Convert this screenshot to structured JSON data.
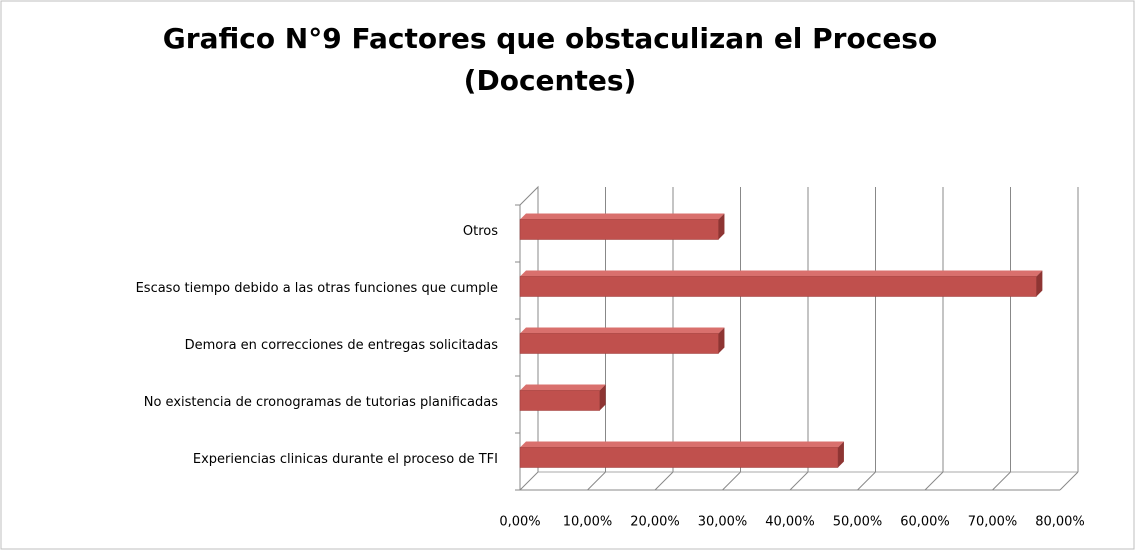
{
  "chart_data": {
    "type": "bar3d_horizontal",
    "title": [
      "Grafico N°9 Factores que obstaculizan el Proceso",
      "(Docentes)"
    ],
    "categories": [
      "Experiencias clinicas durante el proceso de TFI",
      "No existencia de cronogramas de tutorias planificadas",
      "Demora en correcciones de entregas solicitadas",
      "Escaso tiempo debido a las otras funciones que cumple",
      "Otros"
    ],
    "values": [
      47.1,
      11.8,
      29.4,
      76.5,
      29.4
    ],
    "color": "#c0504d",
    "xlim": [
      0,
      80
    ],
    "xticks": [
      {
        "value": 0,
        "label": "0,00%"
      },
      {
        "value": 10,
        "label": "10,00%"
      },
      {
        "value": 20,
        "label": "20,00%"
      },
      {
        "value": 30,
        "label": "30,00%"
      },
      {
        "value": 40,
        "label": "40,00%"
      },
      {
        "value": 50,
        "label": "50,00%"
      },
      {
        "value": 60,
        "label": "60,00%"
      },
      {
        "value": 70,
        "label": "70,00%"
      },
      {
        "value": 80,
        "label": "80,00%"
      }
    ],
    "grid": true
  }
}
